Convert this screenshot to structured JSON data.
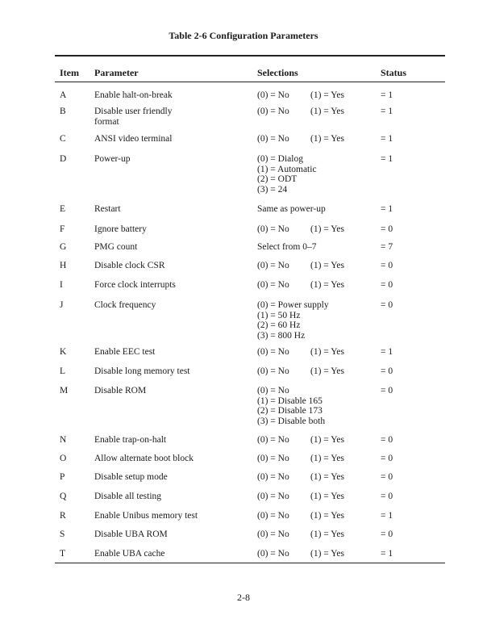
{
  "title": "Table 2-6   Configuration Parameters",
  "headers": {
    "item": "Item",
    "parameter": "Parameter",
    "selections": "Selections",
    "status": "Status"
  },
  "rows": [
    {
      "item": "A",
      "parameter": [
        "Enable halt-on-break"
      ],
      "selections": {
        "inline": [
          "(0) = No",
          "(1) = Yes"
        ]
      },
      "status": "= 1"
    },
    {
      "item": "B",
      "parameter": [
        "Disable user friendly",
        "format"
      ],
      "selections": {
        "inline": [
          "(0) = No",
          "(1) = Yes"
        ]
      },
      "status": "= 1"
    },
    {
      "item": "C",
      "parameter": [
        "ANSI video terminal"
      ],
      "selections": {
        "inline": [
          "(0) = No",
          "(1) = Yes"
        ]
      },
      "status": "= 1"
    },
    {
      "item": "D",
      "parameter": [
        "Power-up"
      ],
      "selections": {
        "lines": [
          "(0) = Dialog",
          "(1) = Automatic",
          "(2) = ODT",
          "(3) = 24"
        ]
      },
      "status": "= 1"
    },
    {
      "item": "E",
      "parameter": [
        "Restart"
      ],
      "selections": {
        "lines": [
          "Same as power-up"
        ]
      },
      "status": "= 1"
    },
    {
      "item": "F",
      "parameter": [
        "Ignore battery"
      ],
      "selections": {
        "inline": [
          "(0) = No",
          "(1) = Yes"
        ]
      },
      "status": "= 0"
    },
    {
      "item": "G",
      "parameter": [
        "PMG count"
      ],
      "selections": {
        "lines": [
          "Select from 0–7"
        ]
      },
      "status": "= 7"
    },
    {
      "item": "H",
      "parameter": [
        "Disable clock CSR"
      ],
      "selections": {
        "inline": [
          "(0) = No",
          "(1) = Yes"
        ]
      },
      "status": "= 0"
    },
    {
      "item": "I",
      "parameter": [
        "Force clock interrupts"
      ],
      "selections": {
        "inline": [
          "(0) = No",
          "(1) = Yes"
        ]
      },
      "status": "= 0"
    },
    {
      "item": "J",
      "parameter": [
        "Clock frequency"
      ],
      "selections": {
        "lines": [
          "(0) = Power supply",
          "(1) = 50 Hz",
          "(2) = 60 Hz",
          "(3) = 800 Hz"
        ]
      },
      "status": "= 0"
    },
    {
      "item": "K",
      "parameter": [
        "Enable EEC test"
      ],
      "selections": {
        "inline": [
          "(0) = No",
          "(1) = Yes"
        ]
      },
      "status": "= 1"
    },
    {
      "item": "L",
      "parameter": [
        "Disable long memory test"
      ],
      "selections": {
        "inline": [
          "(0) = No",
          "(1) = Yes"
        ]
      },
      "status": "= 0"
    },
    {
      "item": "M",
      "parameter": [
        "Disable ROM"
      ],
      "selections": {
        "lines": [
          "(0) = No",
          "(1) = Disable 165",
          "(2) = Disable 173",
          "(3) = Disable both"
        ]
      },
      "status": "= 0"
    },
    {
      "item": "N",
      "parameter": [
        "Enable trap-on-halt"
      ],
      "selections": {
        "inline": [
          "(0) = No",
          "(1) = Yes"
        ]
      },
      "status": "= 0"
    },
    {
      "item": "O",
      "parameter": [
        "Allow alternate boot block"
      ],
      "selections": {
        "inline": [
          "(0) = No",
          "(1) = Yes"
        ]
      },
      "status": "= 0"
    },
    {
      "item": "P",
      "parameter": [
        "Disable setup mode"
      ],
      "selections": {
        "inline": [
          "(0) = No",
          "(1) = Yes"
        ]
      },
      "status": "= 0"
    },
    {
      "item": "Q",
      "parameter": [
        "Disable all testing"
      ],
      "selections": {
        "inline": [
          "(0) = No",
          "(1) = Yes"
        ]
      },
      "status": "= 0"
    },
    {
      "item": "R",
      "parameter": [
        "Enable Unibus memory test"
      ],
      "selections": {
        "inline": [
          "(0) = No",
          "(1) = Yes"
        ]
      },
      "status": "= 1"
    },
    {
      "item": "S",
      "parameter": [
        "Disable UBA ROM"
      ],
      "selections": {
        "inline": [
          "(0) = No",
          "(1) = Yes"
        ]
      },
      "status": "= 0"
    },
    {
      "item": "T",
      "parameter": [
        "Enable UBA cache"
      ],
      "selections": {
        "inline": [
          "(0) = No",
          "(1) = Yes"
        ]
      },
      "status": "= 1"
    }
  ],
  "page_number": "2-8"
}
